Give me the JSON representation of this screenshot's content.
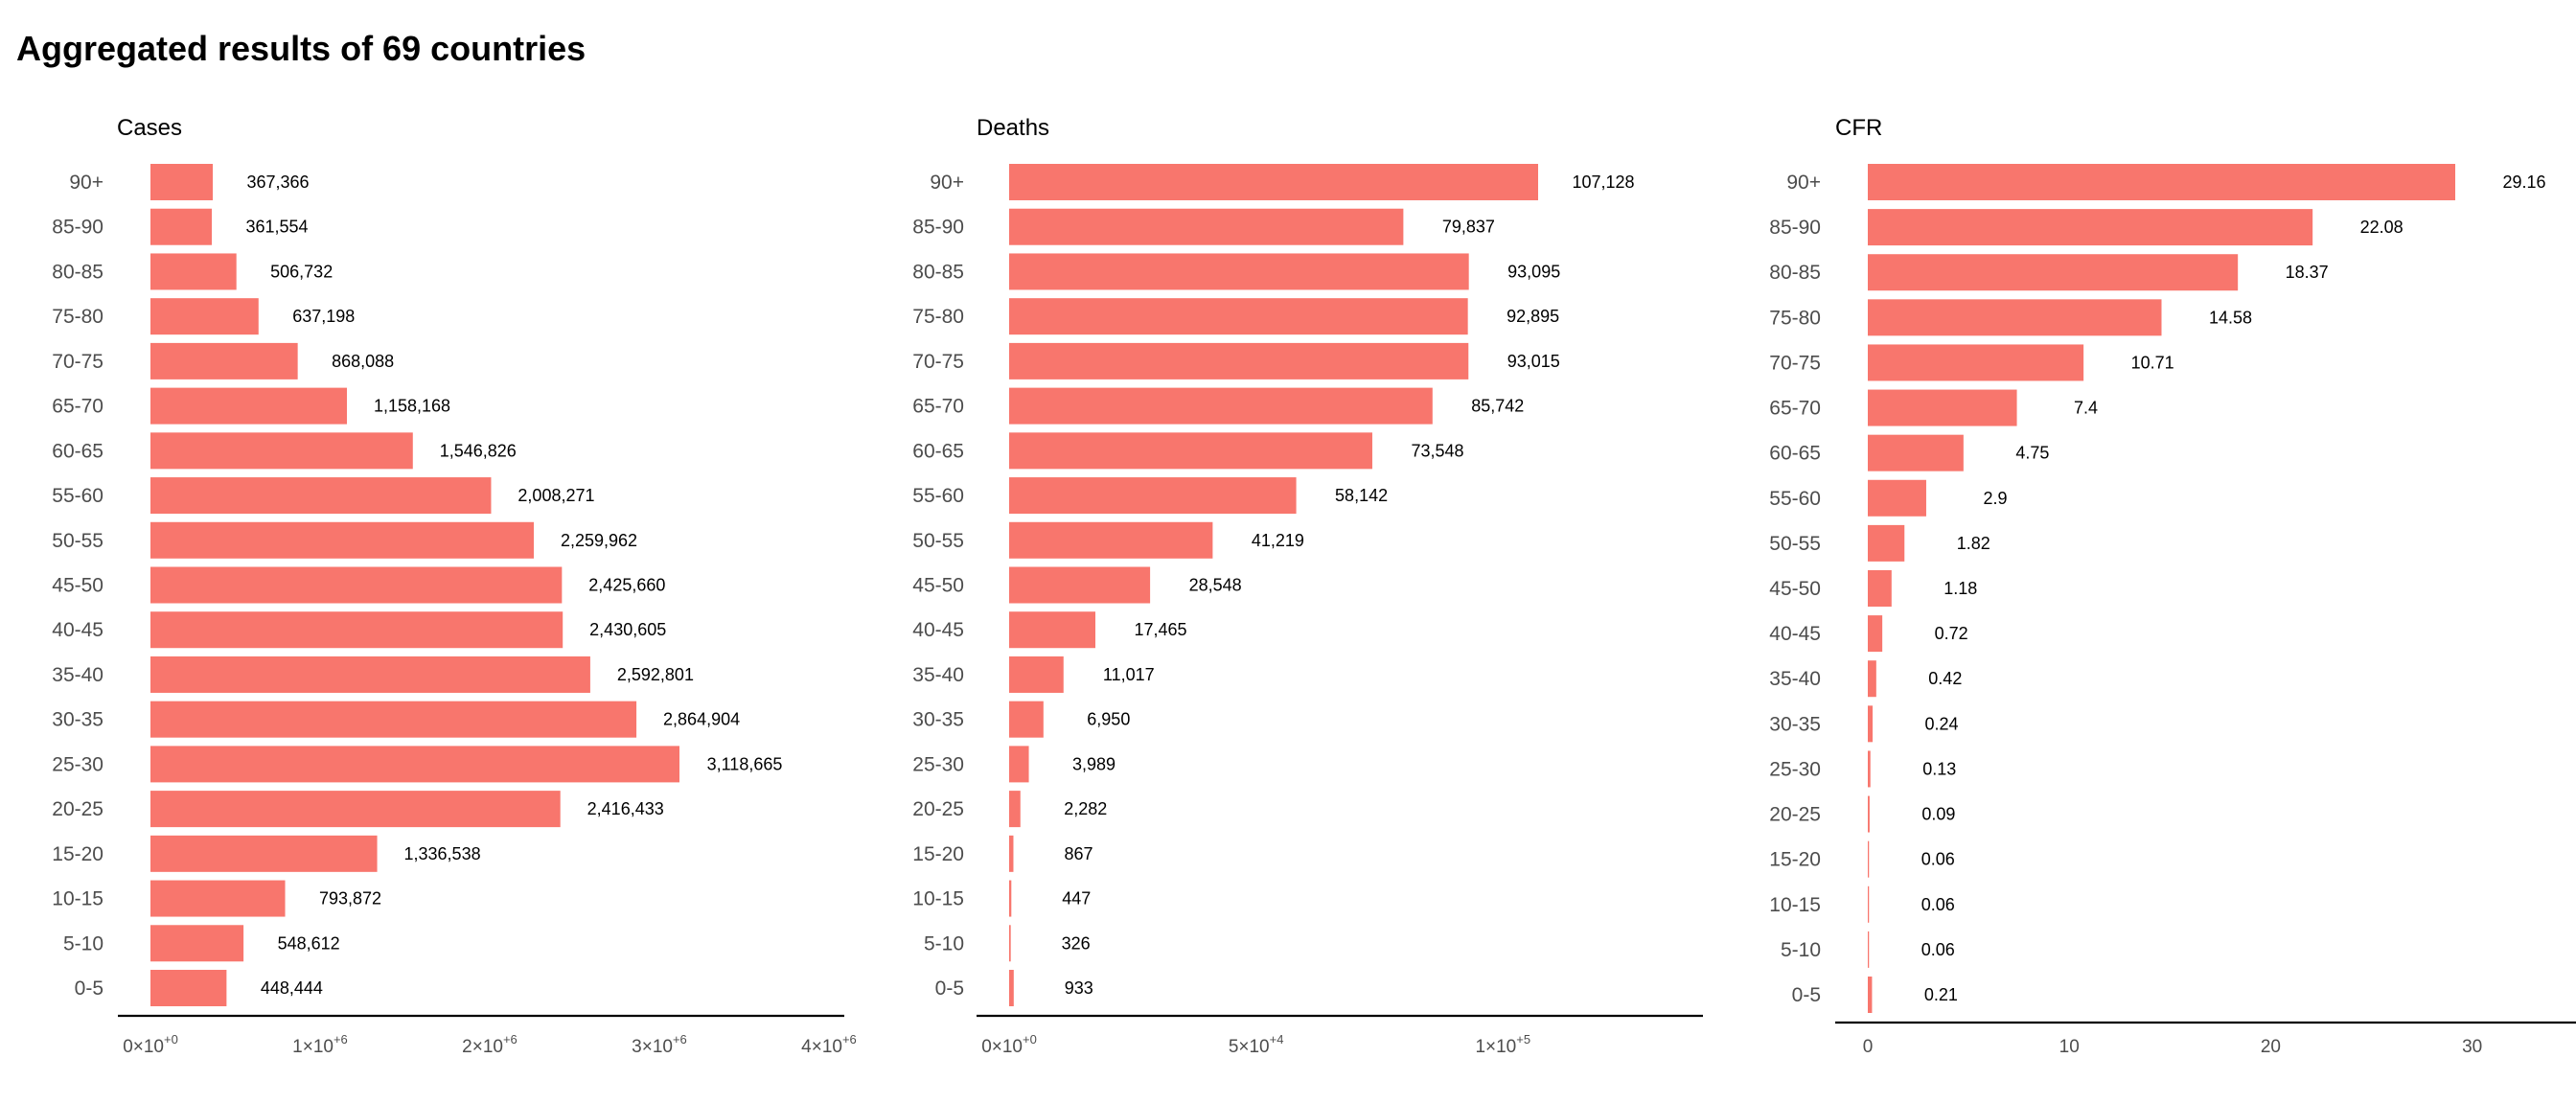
{
  "title": "Aggregated results of 69 countries",
  "bar_color": "#F8766D",
  "chart_data": [
    {
      "type": "bar",
      "orientation": "horizontal",
      "title": "Cases",
      "xlabel": "",
      "ylabel": "",
      "categories": [
        "90+",
        "85-90",
        "80-85",
        "75-80",
        "70-75",
        "65-70",
        "60-65",
        "55-60",
        "50-55",
        "45-50",
        "40-45",
        "35-40",
        "30-35",
        "25-30",
        "20-25",
        "15-20",
        "10-15",
        "5-10",
        "0-5"
      ],
      "values": [
        367366,
        361554,
        506732,
        637198,
        868088,
        1158168,
        1546826,
        2008271,
        2259962,
        2425660,
        2430605,
        2592801,
        2864904,
        3118665,
        2416433,
        1336538,
        793872,
        548612,
        448444
      ],
      "value_labels": [
        "367,366",
        "361,554",
        "506,732",
        "637,198",
        "868,088",
        "1,158,168",
        "1,546,826",
        "2,008,271",
        "2,259,962",
        "2,425,660",
        "2,430,605",
        "2,592,801",
        "2,864,904",
        "3,118,665",
        "2,416,433",
        "1,336,538",
        "793,872",
        "548,612",
        "448,444"
      ],
      "xlim": [
        0,
        4000000
      ],
      "xticks": [
        {
          "value": 0,
          "mantissa": "0",
          "exponent": "+0"
        },
        {
          "value": 1000000,
          "mantissa": "1",
          "exponent": "+6"
        },
        {
          "value": 2000000,
          "mantissa": "2",
          "exponent": "+6"
        },
        {
          "value": 3000000,
          "mantissa": "3",
          "exponent": "+6"
        },
        {
          "value": 4000000,
          "mantissa": "4",
          "exponent": "+6"
        }
      ],
      "tick_format": "scientific",
      "grid": false
    },
    {
      "type": "bar",
      "orientation": "horizontal",
      "title": "Deaths",
      "xlabel": "",
      "ylabel": "",
      "categories": [
        "90+",
        "85-90",
        "80-85",
        "75-80",
        "70-75",
        "65-70",
        "60-65",
        "55-60",
        "50-55",
        "45-50",
        "40-45",
        "35-40",
        "30-35",
        "25-30",
        "20-25",
        "15-20",
        "10-15",
        "5-10",
        "0-5"
      ],
      "values": [
        107128,
        79837,
        93095,
        92895,
        93015,
        85742,
        73548,
        58142,
        41219,
        28548,
        17465,
        11017,
        6950,
        3989,
        2282,
        867,
        447,
        326,
        933
      ],
      "value_labels": [
        "107,128",
        "79,837",
        "93,095",
        "92,895",
        "93,015",
        "85,742",
        "73,548",
        "58,142",
        "41,219",
        "28,548",
        "17,465",
        "11,017",
        "6,950",
        "3,989",
        "2,282",
        "867",
        "447",
        "326",
        "933"
      ],
      "xlim": [
        0,
        100000
      ],
      "xticks": [
        {
          "value": 0,
          "mantissa": "0",
          "exponent": "+0"
        },
        {
          "value": 50000,
          "mantissa": "5",
          "exponent": "+4"
        },
        {
          "value": 100000,
          "mantissa": "1",
          "exponent": "+5"
        }
      ],
      "tick_format": "scientific",
      "grid": false
    },
    {
      "type": "bar",
      "orientation": "horizontal",
      "title": "CFR",
      "xlabel": "",
      "ylabel": "",
      "categories": [
        "90+",
        "85-90",
        "80-85",
        "75-80",
        "70-75",
        "65-70",
        "60-65",
        "55-60",
        "50-55",
        "45-50",
        "40-45",
        "35-40",
        "30-35",
        "25-30",
        "20-25",
        "15-20",
        "10-15",
        "5-10",
        "0-5"
      ],
      "values": [
        29.16,
        22.08,
        18.37,
        14.58,
        10.71,
        7.4,
        4.75,
        2.9,
        1.82,
        1.18,
        0.72,
        0.42,
        0.24,
        0.13,
        0.09,
        0.06,
        0.06,
        0.06,
        0.21
      ],
      "value_labels": [
        "29.16",
        "22.08",
        "18.37",
        "14.58",
        "10.71",
        "7.4",
        "4.75",
        "2.9",
        "1.82",
        "1.18",
        "0.72",
        "0.42",
        "0.24",
        "0.13",
        "0.09",
        "0.06",
        "0.06",
        "0.06",
        "0.21"
      ],
      "xlim": [
        0,
        30
      ],
      "xticks": [
        {
          "value": 0,
          "label": "0"
        },
        {
          "value": 10,
          "label": "10"
        },
        {
          "value": 20,
          "label": "20"
        },
        {
          "value": 30,
          "label": "30"
        }
      ],
      "tick_format": "plain",
      "grid": false
    }
  ]
}
